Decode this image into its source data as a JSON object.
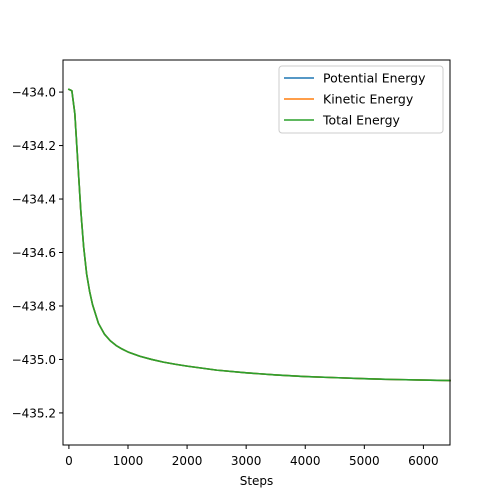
{
  "chart_data": {
    "type": "line",
    "title": "",
    "xlabel": "Steps",
    "ylabel": "",
    "xlim": [
      -100,
      6450
    ],
    "ylim": [
      -435.32,
      -433.88
    ],
    "xticks": [
      0,
      1000,
      2000,
      3000,
      4000,
      5000,
      6000
    ],
    "xtick_labels": [
      "0",
      "1000",
      "2000",
      "3000",
      "4000",
      "5000",
      "6000"
    ],
    "yticks": [
      -434.0,
      -434.2,
      -434.4,
      -434.6,
      -434.8,
      -435.0,
      -435.2
    ],
    "ytick_labels": [
      "−434.0",
      "−434.2",
      "−434.4",
      "−434.6",
      "−434.8",
      "−435.0",
      "−435.2"
    ],
    "y_inverted": true,
    "grid": false,
    "legend_position": "top-right",
    "x": [
      0,
      50,
      100,
      150,
      200,
      250,
      300,
      350,
      400,
      500,
      600,
      700,
      800,
      900,
      1000,
      1200,
      1400,
      1600,
      1800,
      2000,
      2500,
      3000,
      3500,
      4000,
      4500,
      5000,
      5500,
      6000,
      6450
    ],
    "series": [
      {
        "name": "Potential Energy",
        "color": "#1f77b4",
        "values": [
          -433.99,
          -433.995,
          -434.08,
          -434.26,
          -434.44,
          -434.58,
          -434.68,
          -434.745,
          -434.795,
          -434.865,
          -434.905,
          -434.93,
          -434.948,
          -434.961,
          -434.972,
          -434.988,
          -435.0,
          -435.01,
          -435.018,
          -435.025,
          -435.04,
          -435.05,
          -435.058,
          -435.064,
          -435.068,
          -435.072,
          -435.075,
          -435.077,
          -435.079
        ]
      },
      {
        "name": "Kinetic Energy",
        "color": "#ff7f0e",
        "values": [
          -433.99,
          -433.995,
          -434.08,
          -434.26,
          -434.44,
          -434.58,
          -434.68,
          -434.745,
          -434.795,
          -434.865,
          -434.905,
          -434.93,
          -434.948,
          -434.961,
          -434.972,
          -434.988,
          -435.0,
          -435.01,
          -435.018,
          -435.025,
          -435.04,
          -435.05,
          -435.058,
          -435.064,
          -435.068,
          -435.072,
          -435.075,
          -435.077,
          -435.079
        ]
      },
      {
        "name": "Total Energy",
        "color": "#2ca02c",
        "values": [
          -433.99,
          -433.995,
          -434.08,
          -434.26,
          -434.44,
          -434.58,
          -434.68,
          -434.745,
          -434.795,
          -434.865,
          -434.905,
          -434.93,
          -434.948,
          -434.961,
          -434.972,
          -434.988,
          -435.0,
          -435.01,
          -435.018,
          -435.025,
          -435.04,
          -435.05,
          -435.058,
          -435.064,
          -435.068,
          -435.072,
          -435.075,
          -435.077,
          -435.079
        ]
      }
    ]
  }
}
